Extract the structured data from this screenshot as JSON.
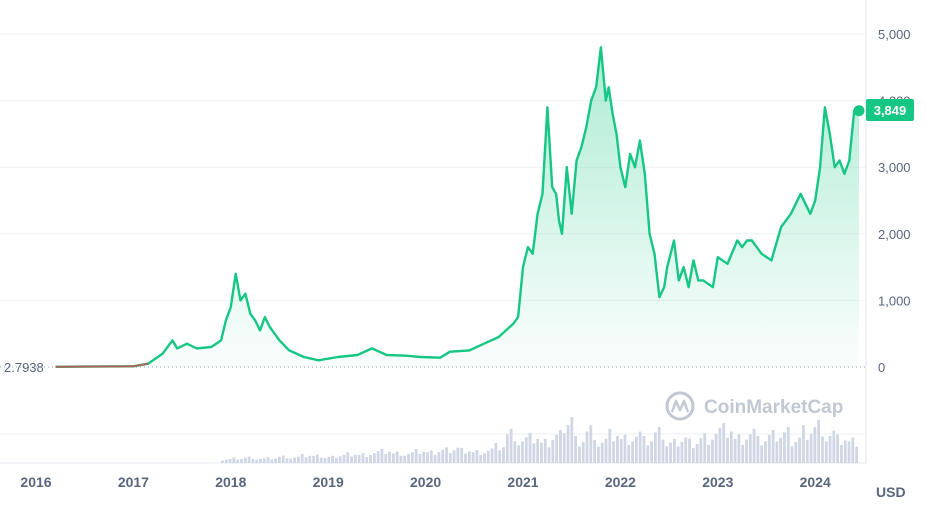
{
  "chart_data": {
    "type": "line",
    "currency_label": "USD",
    "start_price_label": "2.7938",
    "current_price_label": "3,849",
    "watermark": "CoinMarketCap",
    "ylim": [
      0,
      5000
    ],
    "y_ticks": [
      "0",
      "1,000",
      "2,000",
      "3,000",
      "4,000",
      "5,000"
    ],
    "y_tick_values": [
      0,
      1000,
      2000,
      3000,
      4000,
      5000
    ],
    "x_ticks": [
      "2016",
      "2017",
      "2018",
      "2019",
      "2020",
      "2021",
      "2022",
      "2023",
      "2024"
    ],
    "x_tick_values": [
      2016.0,
      2017.0,
      2018.0,
      2019.0,
      2020.0,
      2021.0,
      2022.0,
      2023.0,
      2024.0
    ],
    "colors": {
      "line": "#16c784",
      "area": "#16c784",
      "early_line": "#ea3943",
      "grid": "#eff2f5",
      "volume": "#cfd6e4",
      "text": "#58667e"
    },
    "series": [
      {
        "x": [
          2016.2,
          2016.6,
          2017.0,
          2017.15,
          2017.3,
          2017.4,
          2017.45,
          2017.55,
          2017.65,
          2017.8,
          2017.9,
          2017.95,
          2018.0,
          2018.05,
          2018.1,
          2018.15,
          2018.2,
          2018.25,
          2018.3,
          2018.35,
          2018.4,
          2018.5,
          2018.6,
          2018.75,
          2018.9,
          2019.1,
          2019.3,
          2019.45,
          2019.6,
          2019.8,
          2019.95,
          2020.15,
          2020.25,
          2020.45,
          2020.6,
          2020.75,
          2020.9,
          2020.95,
          2021.0,
          2021.05,
          2021.1,
          2021.15,
          2021.2,
          2021.25,
          2021.3,
          2021.34,
          2021.37,
          2021.4,
          2021.45,
          2021.5,
          2021.55,
          2021.6,
          2021.65,
          2021.7,
          2021.75,
          2021.8,
          2021.85,
          2021.88,
          2021.92,
          2021.96,
          2022.0,
          2022.05,
          2022.1,
          2022.15,
          2022.2,
          2022.25,
          2022.3,
          2022.35,
          2022.4,
          2022.45,
          2022.48,
          2022.55,
          2022.6,
          2022.65,
          2022.7,
          2022.75,
          2022.8,
          2022.85,
          2022.9,
          2022.95,
          2023.0,
          2023.1,
          2023.2,
          2023.25,
          2023.3,
          2023.35,
          2023.45,
          2023.55,
          2023.65,
          2023.75,
          2023.85,
          2023.95,
          2024.0,
          2024.05,
          2024.1,
          2024.15,
          2024.2,
          2024.25,
          2024.3,
          2024.35,
          2024.4,
          2024.45
        ],
        "y": [
          2.79,
          8,
          10,
          50,
          200,
          400,
          280,
          350,
          280,
          300,
          400,
          700,
          900,
          1400,
          1000,
          1100,
          800,
          700,
          550,
          750,
          600,
          400,
          250,
          150,
          100,
          150,
          180,
          280,
          180,
          170,
          150,
          140,
          230,
          250,
          350,
          450,
          650,
          750,
          1500,
          1800,
          1700,
          2300,
          2600,
          3900,
          2700,
          2600,
          2200,
          2000,
          3000,
          2300,
          3100,
          3300,
          3600,
          4000,
          4200,
          4800,
          4000,
          4200,
          3800,
          3500,
          3000,
          2700,
          3200,
          3000,
          3400,
          2900,
          2000,
          1700,
          1050,
          1200,
          1500,
          1900,
          1300,
          1500,
          1200,
          1600,
          1300,
          1300,
          1250,
          1200,
          1650,
          1550,
          1900,
          1800,
          1900,
          1900,
          1700,
          1600,
          2100,
          2300,
          2600,
          2300,
          2500,
          3000,
          3900,
          3500,
          3000,
          3100,
          2900,
          3100,
          3849,
          3849
        ]
      }
    ],
    "volume": [
      0.08,
      0.1,
      0.12,
      0.09,
      0.1,
      0.13,
      0.11,
      0.15,
      0.14,
      0.12,
      0.16,
      0.2,
      0.18,
      0.22,
      0.25,
      0.2,
      0.19,
      0.23,
      0.21,
      0.26,
      0.3,
      0.28,
      0.24,
      0.27,
      0.35,
      0.6,
      0.45,
      0.5,
      0.4,
      0.55,
      0.9,
      0.5,
      0.7,
      0.45,
      0.6,
      0.5,
      0.55,
      0.45,
      0.6,
      0.4,
      0.5,
      0.45,
      0.55,
      0.65,
      0.7,
      0.5,
      0.6,
      0.45,
      0.55,
      0.6,
      0.5,
      0.7,
      0.8,
      0.6,
      0.5,
      0.45
    ]
  }
}
